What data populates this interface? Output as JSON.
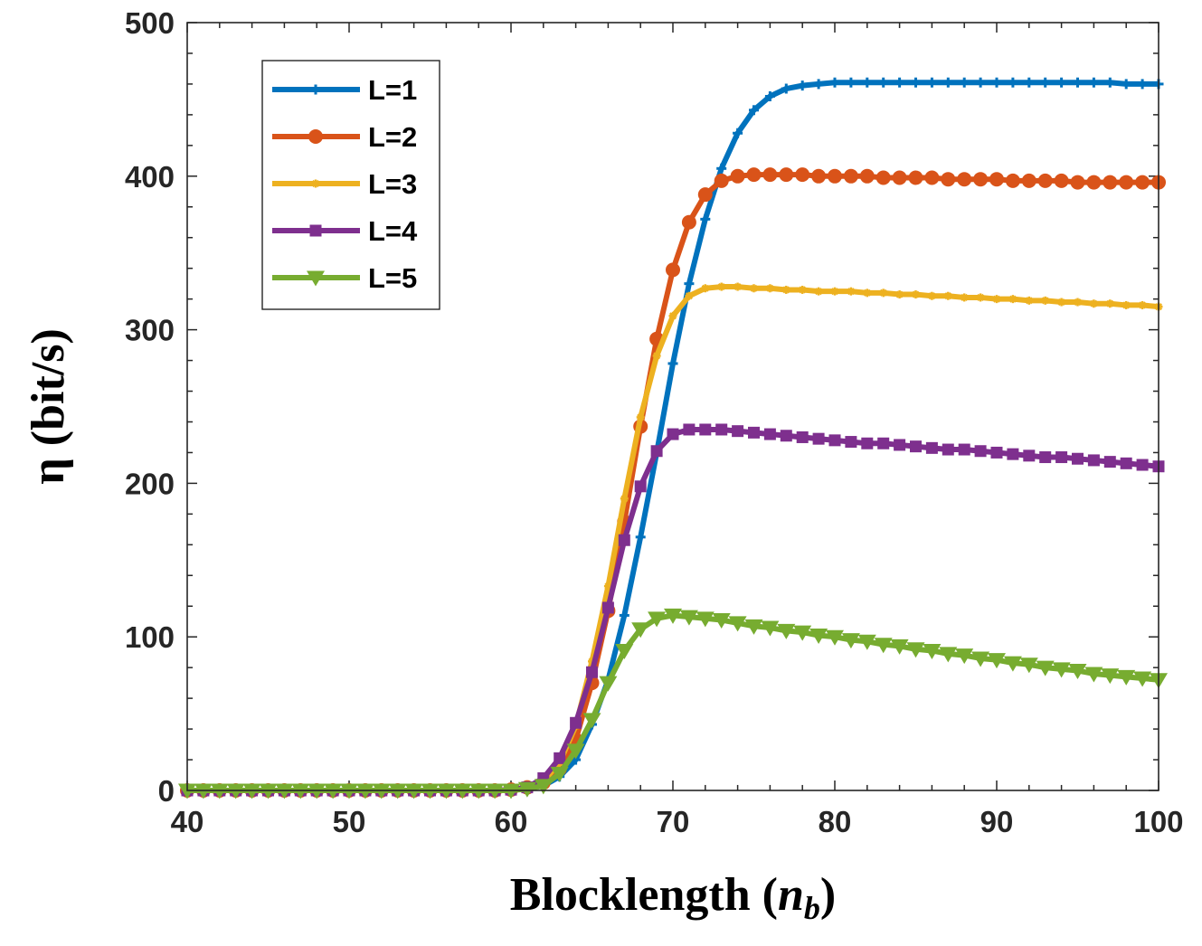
{
  "chart_data": {
    "type": "line",
    "xlabel": "Blocklength (",
    "xlabel_var": "n",
    "xlabel_sub": "b",
    "xlabel_close": ")",
    "ylabel": "η (bit/s)",
    "xlim": [
      40,
      100
    ],
    "ylim": [
      0,
      500
    ],
    "xticks": [
      "40",
      "50",
      "60",
      "70",
      "80",
      "90",
      "100"
    ],
    "yticks": [
      "0",
      "100",
      "200",
      "300",
      "400",
      "500"
    ],
    "grid": false,
    "legend_position": "top-left",
    "x": [
      40,
      41,
      42,
      43,
      44,
      45,
      46,
      47,
      48,
      49,
      50,
      51,
      52,
      53,
      54,
      55,
      56,
      57,
      58,
      59,
      60,
      61,
      62,
      63,
      64,
      65,
      66,
      67,
      68,
      69,
      70,
      71,
      72,
      73,
      74,
      75,
      76,
      77,
      78,
      79,
      80,
      81,
      82,
      83,
      84,
      85,
      86,
      87,
      88,
      89,
      90,
      91,
      92,
      93,
      94,
      95,
      96,
      97,
      98,
      99,
      100
    ],
    "series": [
      {
        "name": "L=1",
        "color": "#0072BD",
        "marker": "plus",
        "values": [
          0,
          0,
          0,
          0,
          0,
          0,
          0,
          0,
          0,
          0,
          0,
          0,
          0,
          0,
          0,
          0,
          0,
          0,
          0,
          0,
          0.5,
          1.5,
          3,
          9,
          20,
          43,
          72,
          114,
          165,
          220,
          278,
          330,
          372,
          405,
          428,
          443,
          452,
          457,
          459,
          460,
          461,
          461,
          461,
          461,
          461,
          461,
          461,
          461,
          461,
          461,
          461,
          461,
          461,
          461,
          461,
          461,
          461,
          461,
          460,
          460,
          460
        ]
      },
      {
        "name": "L=2",
        "color": "#D95319",
        "marker": "circle",
        "values": [
          0,
          0,
          0,
          0,
          0,
          0,
          0,
          0,
          0,
          0,
          0,
          0,
          0,
          0,
          0,
          0,
          0,
          0,
          0,
          0,
          0.5,
          2,
          5,
          14,
          33,
          70,
          117,
          175,
          237,
          294,
          339,
          370,
          388,
          397,
          400,
          401,
          401,
          401,
          401,
          400,
          400,
          400,
          400,
          399,
          399,
          399,
          399,
          398,
          398,
          398,
          398,
          397,
          397,
          397,
          397,
          396,
          396,
          396,
          396,
          396,
          396
        ]
      },
      {
        "name": "L=3",
        "color": "#EDB120",
        "marker": "star",
        "values": [
          0,
          0,
          0,
          0,
          0,
          0,
          0,
          0,
          0,
          0,
          0,
          0,
          0,
          0,
          0,
          0,
          0,
          0,
          0,
          0,
          0.5,
          2,
          6,
          18,
          42,
          84,
          133,
          190,
          243,
          283,
          309,
          322,
          327,
          328,
          328,
          327,
          327,
          326,
          326,
          325,
          325,
          325,
          324,
          324,
          323,
          323,
          322,
          322,
          321,
          321,
          320,
          320,
          319,
          319,
          318,
          318,
          317,
          317,
          316,
          316,
          315
        ]
      },
      {
        "name": "L=4",
        "color": "#7E2F8E",
        "marker": "square",
        "values": [
          0,
          0,
          0,
          0,
          0,
          0,
          0,
          0,
          0,
          0,
          0,
          0,
          0,
          0,
          0,
          0,
          0,
          0,
          0,
          0,
          0.5,
          2,
          8,
          21,
          44,
          77,
          119,
          163,
          198,
          221,
          232,
          235,
          235,
          235,
          234,
          233,
          232,
          231,
          230,
          229,
          228,
          227,
          226,
          226,
          225,
          224,
          223,
          222,
          222,
          221,
          220,
          219,
          218,
          217,
          217,
          216,
          215,
          214,
          213,
          212,
          211
        ]
      },
      {
        "name": "L=5",
        "color": "#77AC30",
        "marker": "triangle-down",
        "values": [
          0,
          0,
          0,
          0,
          0,
          0,
          0,
          0,
          0,
          0,
          0,
          0,
          0,
          0,
          0,
          0,
          0,
          0,
          0,
          0,
          0,
          1,
          3,
          11,
          26,
          46,
          70,
          91,
          105,
          112,
          114,
          113,
          112,
          111,
          109,
          107,
          106,
          104,
          103,
          101,
          100,
          98,
          97,
          95,
          94,
          92,
          91,
          89,
          88,
          86,
          85,
          83,
          82,
          80,
          79,
          78,
          76,
          75,
          74,
          73,
          72
        ]
      }
    ]
  }
}
